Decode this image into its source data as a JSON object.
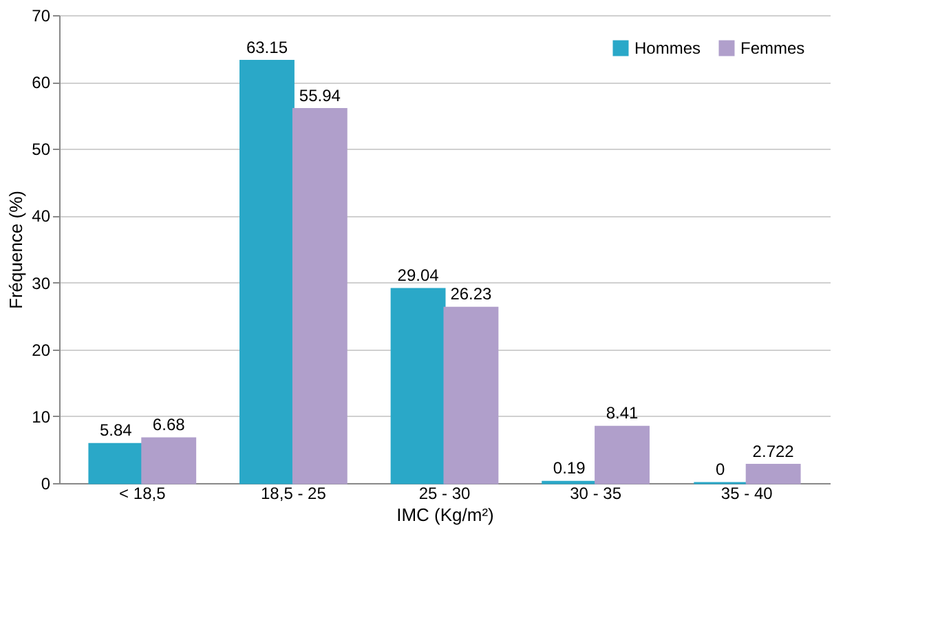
{
  "chart_data": {
    "type": "bar",
    "xlabel": "IMC (Kg/m²)",
    "ylabel": "Fréquence (%)",
    "categories": [
      "< 18,5",
      "18,5 - 25",
      "25 - 30",
      "30 - 35",
      "35 - 40"
    ],
    "series": [
      {
        "name": "Hommes",
        "color": "#2aa8c8",
        "values": [
          5.84,
          63.15,
          29.04,
          0.19,
          0
        ]
      },
      {
        "name": "Femmes",
        "color": "#b09fcb",
        "values": [
          6.68,
          55.94,
          26.23,
          8.41,
          2.722
        ]
      }
    ],
    "ylim": [
      0,
      70
    ],
    "yticks": [
      0,
      10,
      20,
      30,
      40,
      50,
      60,
      70
    ],
    "grid": "y",
    "legend": "top right",
    "data_labels": true
  }
}
